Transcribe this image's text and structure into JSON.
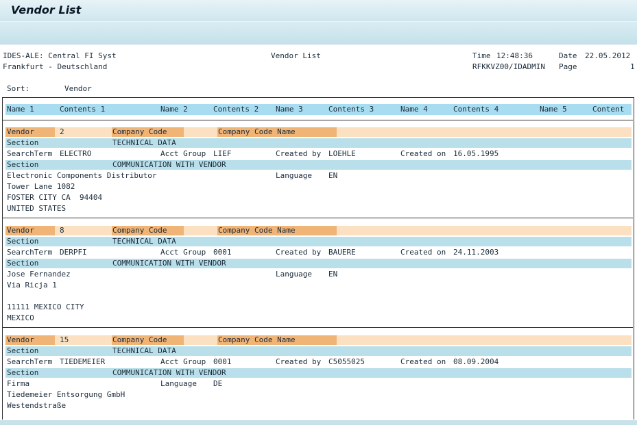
{
  "window": {
    "title": "Vendor List"
  },
  "report_header": {
    "system": "IDES-ALE: Central FI Syst",
    "location": "Frankfurt - Deutschland",
    "report_title": "Vendor List",
    "time_label": "Time",
    "time": "12:48:36",
    "date_label": "Date",
    "date": "22.05.2012",
    "program_user": "RFKKVZ00/IDADMIN",
    "page_label": "Page",
    "page": "1"
  },
  "sort": {
    "label": "Sort:",
    "value": "Vendor"
  },
  "columns": [
    "Name 1",
    "Contents 1",
    "Name 2",
    "Contents 2",
    "Name 3",
    "Contents 3",
    "Name 4",
    "Contents 4",
    "Name 5",
    "Content"
  ],
  "labels": {
    "vendor": "Vendor",
    "company_code": "Company Code",
    "company_code_name": "Company Code Name",
    "section": "Section",
    "technical_data": "TECHNICAL DATA",
    "search_term": "SearchTerm",
    "acct_group": "Acct Group",
    "created_by": "Created by",
    "created_on": "Created on",
    "communication": "COMMUNICATION WITH VENDOR",
    "language": "Language"
  },
  "vendors": [
    {
      "number": "2",
      "search_term": "ELECTRO",
      "acct_group": "LIEF",
      "created_by": "LOEHLE",
      "created_on": "16.05.1995",
      "language": "EN",
      "address": [
        "Electronic Components Distributor",
        "Tower Lane 1082",
        "FOSTER CITY CA  94404",
        "UNITED STATES"
      ]
    },
    {
      "number": "8",
      "search_term": "DERPFI",
      "acct_group": "0001",
      "created_by": "BAUERE",
      "created_on": "24.11.2003",
      "language": "EN",
      "address": [
        "Jose Fernandez",
        "Via Ricja 1",
        "",
        "11111 MEXICO CITY",
        "MEXICO"
      ]
    },
    {
      "number": "15",
      "search_term": "TIEDEMEIER",
      "acct_group": "0001",
      "created_by": "C5055025",
      "created_on": "08.09.2004",
      "language": "DE",
      "address": [
        "Firma",
        "Tiedemeier Entsorgung GmbH",
        "Westendstraße"
      ]
    }
  ]
}
